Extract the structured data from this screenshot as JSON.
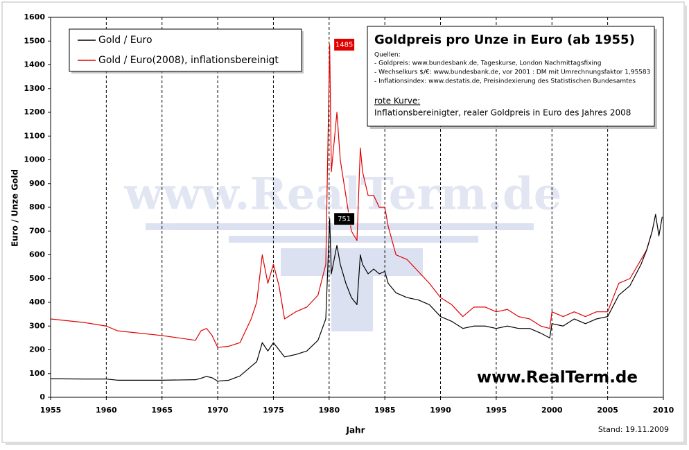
{
  "chart_data": {
    "type": "line",
    "title": "Goldpreis pro Unze in Euro (ab 1955)",
    "info_box": {
      "heading": "Quellen:",
      "lines": [
        "- Goldpreis: www.bundesbank.de, Tageskurse, London Nachmittagsfixing",
        "- Wechselkurs $/€: www.bundesbank.de, vor 2001 : DM mit Umrechnungsfaktor 1,95583",
        "- Inflationsindex: www.destatis.de,  Preisindexierung des Statistischen Bundesamtes"
      ],
      "note_heading": "rote Kurve:",
      "note": "Inflationsbereinigter, realer Goldpreis in Euro des Jahres 2008"
    },
    "watermark": "www.RealTerm.de",
    "brand": "www.RealTerm.de",
    "footnote": "Stand: 19.11.2009",
    "x_label": "Jahr",
    "y_label": "Euro / Unze Gold",
    "legend": "upper left",
    "grid": "x",
    "xlim": [
      1955,
      2010
    ],
    "xticks": [
      1955,
      1960,
      1965,
      1970,
      1975,
      1980,
      1985,
      1990,
      1995,
      2000,
      2005,
      2010
    ],
    "ylim": [
      0,
      1600
    ],
    "yticks": [
      0,
      100,
      200,
      300,
      400,
      500,
      600,
      700,
      800,
      900,
      1000,
      1100,
      1200,
      1300,
      1400,
      1500,
      1600
    ],
    "x": [
      1955,
      1958,
      1960,
      1961,
      1965,
      1968,
      1968.5,
      1969,
      1969.5,
      1970,
      1971,
      1972,
      1973,
      1973.5,
      1974,
      1974.5,
      1975,
      1975.5,
      1976,
      1977,
      1978,
      1979,
      1979.7,
      1980.05,
      1980.2,
      1980.7,
      1981,
      1981.5,
      1982,
      1982.5,
      1982.8,
      1983,
      1983.5,
      1984,
      1984.5,
      1985,
      1985.3,
      1986,
      1987,
      1988,
      1989,
      1990,
      1991,
      1992,
      1993,
      1994,
      1995,
      1996,
      1997,
      1998,
      1999,
      1999.8,
      2000,
      2001,
      2002,
      2003,
      2004,
      2005,
      2006,
      2007,
      2008,
      2008.5,
      2009,
      2009.3,
      2009.6,
      2009.9
    ],
    "series": [
      {
        "name": "Gold / Euro",
        "color": "#000000",
        "values": [
          78,
          77,
          77,
          72,
          72,
          74,
          80,
          88,
          82,
          68,
          72,
          90,
          130,
          150,
          230,
          195,
          230,
          200,
          170,
          180,
          195,
          240,
          330,
          751,
          520,
          640,
          560,
          480,
          420,
          390,
          600,
          560,
          520,
          540,
          520,
          530,
          480,
          440,
          420,
          410,
          390,
          340,
          320,
          290,
          300,
          300,
          290,
          300,
          290,
          290,
          270,
          250,
          310,
          300,
          330,
          310,
          330,
          340,
          430,
          470,
          560,
          620,
          700,
          770,
          680,
          760
        ]
      },
      {
        "name": "Gold / Euro(2008), inflationsbereinigt",
        "color": "#e00000",
        "values": [
          330,
          315,
          300,
          280,
          260,
          240,
          280,
          290,
          260,
          210,
          215,
          230,
          330,
          400,
          600,
          480,
          560,
          470,
          330,
          360,
          380,
          430,
          560,
          1485,
          950,
          1200,
          1000,
          850,
          700,
          660,
          1050,
          950,
          850,
          850,
          800,
          800,
          720,
          600,
          580,
          530,
          480,
          420,
          390,
          340,
          380,
          380,
          360,
          370,
          340,
          330,
          300,
          290,
          360,
          340,
          360,
          340,
          360,
          360,
          480,
          500,
          580,
          620,
          700,
          null,
          null,
          null
        ]
      }
    ],
    "annotations": [
      {
        "x": 1980.05,
        "value": 1485,
        "color": "#e00000",
        "text_color": "#ffffff"
      },
      {
        "x": 1980.05,
        "value": 751,
        "color": "#000000",
        "text_color": "#ffffff"
      }
    ]
  }
}
